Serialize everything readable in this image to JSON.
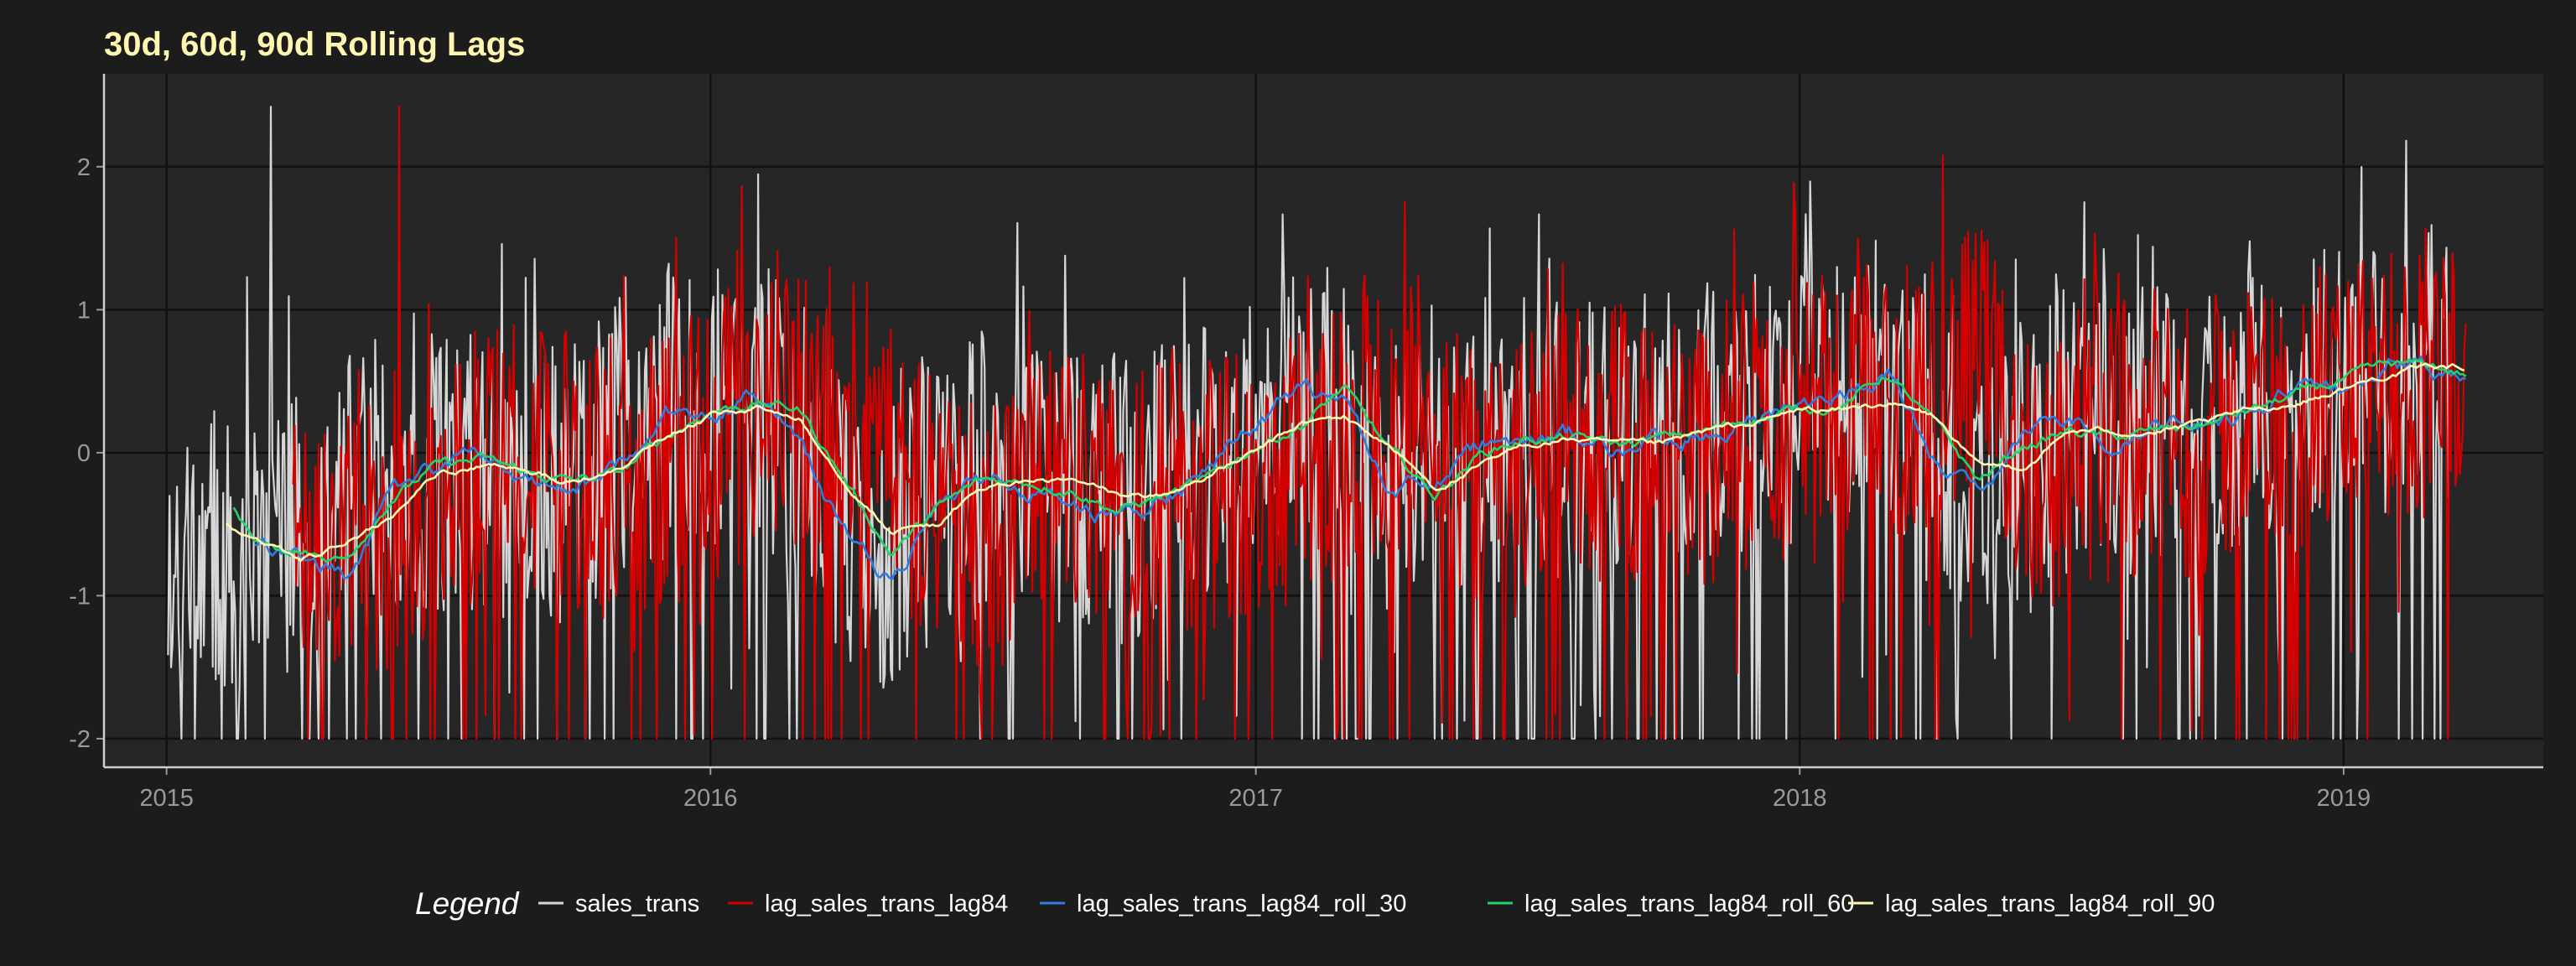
{
  "chart_data": {
    "type": "line",
    "title": "30d, 60d, 90d Rolling Lags",
    "xlabel": "",
    "ylabel": "",
    "x_range": [
      "2014-11-20",
      "2019-05-15"
    ],
    "x_ticks": [
      {
        "date": "2015-01-01",
        "label": "2015"
      },
      {
        "date": "2016-01-01",
        "label": "2016"
      },
      {
        "date": "2017-01-01",
        "label": "2017"
      },
      {
        "date": "2018-01-01",
        "label": "2018"
      },
      {
        "date": "2019-01-01",
        "label": "2019"
      }
    ],
    "ylim": [
      -2.2,
      2.65
    ],
    "y_ticks": [
      {
        "value": 2,
        "label": "2"
      },
      {
        "value": 1,
        "label": "1"
      },
      {
        "value": 0,
        "label": "0"
      },
      {
        "value": -1,
        "label": "-1"
      },
      {
        "value": -2,
        "label": "-2"
      }
    ],
    "grid": true,
    "legend_position": "bottom",
    "legend_title": "Legend",
    "theme": {
      "background": "#1c1c1c",
      "panel": "#262626",
      "grid": "#111111",
      "axis": "#cfcfcf"
    },
    "series": [
      {
        "name": "sales_trans",
        "color": "#d6d6d6",
        "style": "daily-noisy",
        "start_date": "2015-01-02",
        "end_date": "2019-03-12",
        "x": [
          "2015-01-02",
          "2015-02-01",
          "2015-03-01",
          "2015-04-01",
          "2015-05-01",
          "2015-06-01",
          "2015-07-01",
          "2015-08-01",
          "2015-09-01",
          "2015-10-01",
          "2015-11-01",
          "2015-12-01",
          "2016-01-01",
          "2016-02-01",
          "2016-03-01",
          "2016-04-01",
          "2016-05-01",
          "2016-06-01",
          "2016-07-01",
          "2016-08-01",
          "2016-09-01",
          "2016-10-01",
          "2016-11-01",
          "2016-12-01",
          "2017-01-01",
          "2017-02-01",
          "2017-03-01",
          "2017-04-01",
          "2017-05-01",
          "2017-06-01",
          "2017-07-01",
          "2017-08-01",
          "2017-09-01",
          "2017-10-01",
          "2017-11-01",
          "2017-12-01",
          "2018-01-01",
          "2018-02-01",
          "2018-03-01",
          "2018-04-01",
          "2018-05-01",
          "2018-06-01",
          "2018-07-01",
          "2018-08-01",
          "2018-09-01",
          "2018-10-01",
          "2018-11-01",
          "2018-12-01",
          "2019-01-01",
          "2019-02-01",
          "2019-03-01",
          "2019-03-12"
        ],
        "values": [
          -0.9,
          -0.7,
          -0.6,
          -0.6,
          -0.3,
          -0.1,
          -0.1,
          -0.15,
          -0.2,
          -0.2,
          0.1,
          0.25,
          0.35,
          0.4,
          0.1,
          -0.5,
          -0.7,
          -0.3,
          -0.15,
          -0.2,
          -0.2,
          -0.35,
          -0.2,
          -0.1,
          0.1,
          0.3,
          0.3,
          -0.2,
          -0.15,
          0.1,
          0.1,
          0.05,
          0.05,
          0.15,
          0.2,
          0.3,
          0.35,
          0.4,
          0.6,
          -0.05,
          -0.2,
          0.1,
          0.15,
          0.1,
          0.2,
          0.25,
          0.3,
          0.4,
          0.5,
          0.55,
          0.6,
          0.6
        ],
        "max": 2.42,
        "min": -2.0
      },
      {
        "name": "lag_sales_trans_lag84",
        "color": "#d40000",
        "style": "daily-noisy",
        "start_date": "2015-03-27",
        "end_date": "2019-03-24",
        "x": [
          "2015-03-27",
          "2015-04-01",
          "2015-05-01",
          "2015-06-01",
          "2015-07-01",
          "2015-08-01",
          "2015-09-01",
          "2015-10-01",
          "2015-11-01",
          "2015-12-01",
          "2016-01-01",
          "2016-02-01",
          "2016-03-01",
          "2016-04-01",
          "2016-05-01",
          "2016-06-01",
          "2016-07-01",
          "2016-08-01",
          "2016-09-01",
          "2016-10-01",
          "2016-11-01",
          "2016-12-01",
          "2017-01-01",
          "2017-02-01",
          "2017-03-01",
          "2017-04-01",
          "2017-05-01",
          "2017-06-01",
          "2017-07-01",
          "2017-08-01",
          "2017-09-01",
          "2017-10-01",
          "2017-11-01",
          "2017-12-01",
          "2018-01-01",
          "2018-02-01",
          "2018-03-01",
          "2018-04-01",
          "2018-05-01",
          "2018-06-01",
          "2018-07-01",
          "2018-08-01",
          "2018-09-01",
          "2018-10-01",
          "2018-11-01",
          "2018-12-01",
          "2019-01-01",
          "2019-02-01",
          "2019-03-01",
          "2019-03-24"
        ],
        "values": [
          -0.7,
          -0.7,
          -0.7,
          -0.6,
          -0.3,
          -0.1,
          -0.1,
          -0.15,
          -0.2,
          -0.2,
          0.1,
          0.25,
          0.35,
          0.4,
          0.1,
          -0.5,
          -0.7,
          -0.3,
          -0.15,
          -0.2,
          -0.2,
          -0.35,
          -0.2,
          -0.1,
          0.1,
          0.3,
          0.3,
          -0.2,
          -0.15,
          0.1,
          0.1,
          0.05,
          0.05,
          0.15,
          0.2,
          0.3,
          0.35,
          0.4,
          0.6,
          -0.05,
          -0.2,
          0.1,
          0.15,
          0.1,
          0.2,
          0.25,
          0.4,
          0.5,
          0.55,
          0.6
        ],
        "max": 2.42,
        "min": -2.0
      },
      {
        "name": "lag_sales_trans_lag84_roll_30",
        "color": "#2f7de1",
        "style": "smooth",
        "x": [
          "2015-03-01",
          "2015-04-01",
          "2015-05-01",
          "2015-06-01",
          "2015-07-01",
          "2015-08-01",
          "2015-09-01",
          "2015-10-01",
          "2015-11-01",
          "2015-12-01",
          "2016-01-01",
          "2016-02-01",
          "2016-03-01",
          "2016-04-01",
          "2016-05-01",
          "2016-06-01",
          "2016-07-01",
          "2016-08-01",
          "2016-09-01",
          "2016-10-01",
          "2016-11-01",
          "2016-12-01",
          "2017-01-01",
          "2017-02-01",
          "2017-03-01",
          "2017-04-01",
          "2017-05-01",
          "2017-06-01",
          "2017-07-01",
          "2017-08-01",
          "2017-09-01",
          "2017-10-01",
          "2017-11-01",
          "2017-12-01",
          "2018-01-01",
          "2018-02-01",
          "2018-03-01",
          "2018-04-01",
          "2018-05-01",
          "2018-06-01",
          "2018-07-01",
          "2018-08-01",
          "2018-09-01",
          "2018-10-01",
          "2018-11-01",
          "2018-12-01",
          "2019-01-01",
          "2019-02-01",
          "2019-03-01",
          "2019-03-24"
        ],
        "values": [
          -0.6,
          -0.7,
          -0.85,
          -0.3,
          -0.1,
          0.05,
          -0.2,
          -0.3,
          -0.1,
          0.3,
          0.3,
          0.45,
          0.05,
          -0.6,
          -0.9,
          -0.4,
          -0.2,
          -0.25,
          -0.3,
          -0.45,
          -0.3,
          -0.15,
          0.2,
          0.45,
          0.3,
          -0.3,
          -0.15,
          0.05,
          0.1,
          0.1,
          0.05,
          0.1,
          0.15,
          0.3,
          0.35,
          0.4,
          0.6,
          -0.05,
          -0.35,
          0.1,
          0.2,
          0.1,
          0.2,
          0.25,
          0.3,
          0.5,
          0.45,
          0.7,
          0.55,
          0.5
        ]
      },
      {
        "name": "lag_sales_trans_lag84_roll_60",
        "color": "#22d46a",
        "style": "smooth",
        "x": [
          "2015-02-15",
          "2015-03-01",
          "2015-04-01",
          "2015-05-01",
          "2015-06-01",
          "2015-07-01",
          "2015-08-01",
          "2015-09-01",
          "2015-10-01",
          "2015-11-01",
          "2015-12-01",
          "2016-01-01",
          "2016-02-01",
          "2016-03-01",
          "2016-04-01",
          "2016-05-01",
          "2016-06-01",
          "2016-07-01",
          "2016-08-01",
          "2016-09-01",
          "2016-10-01",
          "2016-11-01",
          "2016-12-01",
          "2017-01-01",
          "2017-02-01",
          "2017-03-01",
          "2017-04-01",
          "2017-05-01",
          "2017-06-01",
          "2017-07-01",
          "2017-08-01",
          "2017-09-01",
          "2017-10-01",
          "2017-11-01",
          "2017-12-01",
          "2018-01-01",
          "2018-02-01",
          "2018-03-01",
          "2018-04-01",
          "2018-05-01",
          "2018-06-01",
          "2018-07-01",
          "2018-08-01",
          "2018-09-01",
          "2018-10-01",
          "2018-11-01",
          "2018-12-01",
          "2019-01-01",
          "2019-02-01",
          "2019-03-01",
          "2019-03-24"
        ],
        "values": [
          -0.4,
          -0.6,
          -0.7,
          -0.75,
          -0.3,
          -0.1,
          -0.05,
          -0.15,
          -0.2,
          -0.15,
          0.1,
          0.3,
          0.35,
          0.3,
          -0.2,
          -0.7,
          -0.4,
          -0.2,
          -0.2,
          -0.25,
          -0.4,
          -0.3,
          -0.2,
          0.05,
          0.2,
          0.45,
          0.0,
          -0.3,
          0.0,
          0.1,
          0.1,
          0.05,
          0.1,
          0.15,
          0.25,
          0.3,
          0.35,
          0.55,
          0.2,
          -0.2,
          0.05,
          0.15,
          0.1,
          0.15,
          0.2,
          0.3,
          0.4,
          0.5,
          0.6,
          0.6,
          0.55
        ]
      },
      {
        "name": "lag_sales_trans_lag84_roll_90",
        "color": "#fdf7b0",
        "style": "smooth",
        "x": [
          "2015-02-10",
          "2015-03-01",
          "2015-04-01",
          "2015-05-01",
          "2015-06-01",
          "2015-07-01",
          "2015-08-01",
          "2015-09-01",
          "2015-10-01",
          "2015-11-01",
          "2015-12-01",
          "2016-01-01",
          "2016-02-01",
          "2016-03-01",
          "2016-04-01",
          "2016-05-01",
          "2016-06-01",
          "2016-07-01",
          "2016-08-01",
          "2016-09-01",
          "2016-10-01",
          "2016-11-01",
          "2016-12-01",
          "2017-01-01",
          "2017-02-01",
          "2017-03-01",
          "2017-04-01",
          "2017-05-01",
          "2017-06-01",
          "2017-07-01",
          "2017-08-01",
          "2017-09-01",
          "2017-10-01",
          "2017-11-01",
          "2017-12-01",
          "2018-01-01",
          "2018-02-01",
          "2018-03-01",
          "2018-04-01",
          "2018-05-01",
          "2018-06-01",
          "2018-07-01",
          "2018-08-01",
          "2018-09-01",
          "2018-10-01",
          "2018-11-01",
          "2018-12-01",
          "2019-01-01",
          "2019-02-01",
          "2019-03-01",
          "2019-03-24"
        ],
        "values": [
          -0.5,
          -0.6,
          -0.75,
          -0.65,
          -0.45,
          -0.15,
          -0.1,
          -0.15,
          -0.2,
          -0.1,
          0.1,
          0.25,
          0.3,
          0.25,
          -0.2,
          -0.55,
          -0.5,
          -0.25,
          -0.2,
          -0.2,
          -0.3,
          -0.3,
          -0.15,
          0.0,
          0.2,
          0.25,
          0.05,
          -0.25,
          -0.1,
          0.05,
          0.1,
          0.05,
          0.05,
          0.15,
          0.2,
          0.3,
          0.3,
          0.35,
          0.25,
          -0.1,
          -0.1,
          0.15,
          0.15,
          0.15,
          0.2,
          0.3,
          0.35,
          0.45,
          0.55,
          0.6,
          0.6
        ]
      }
    ]
  }
}
